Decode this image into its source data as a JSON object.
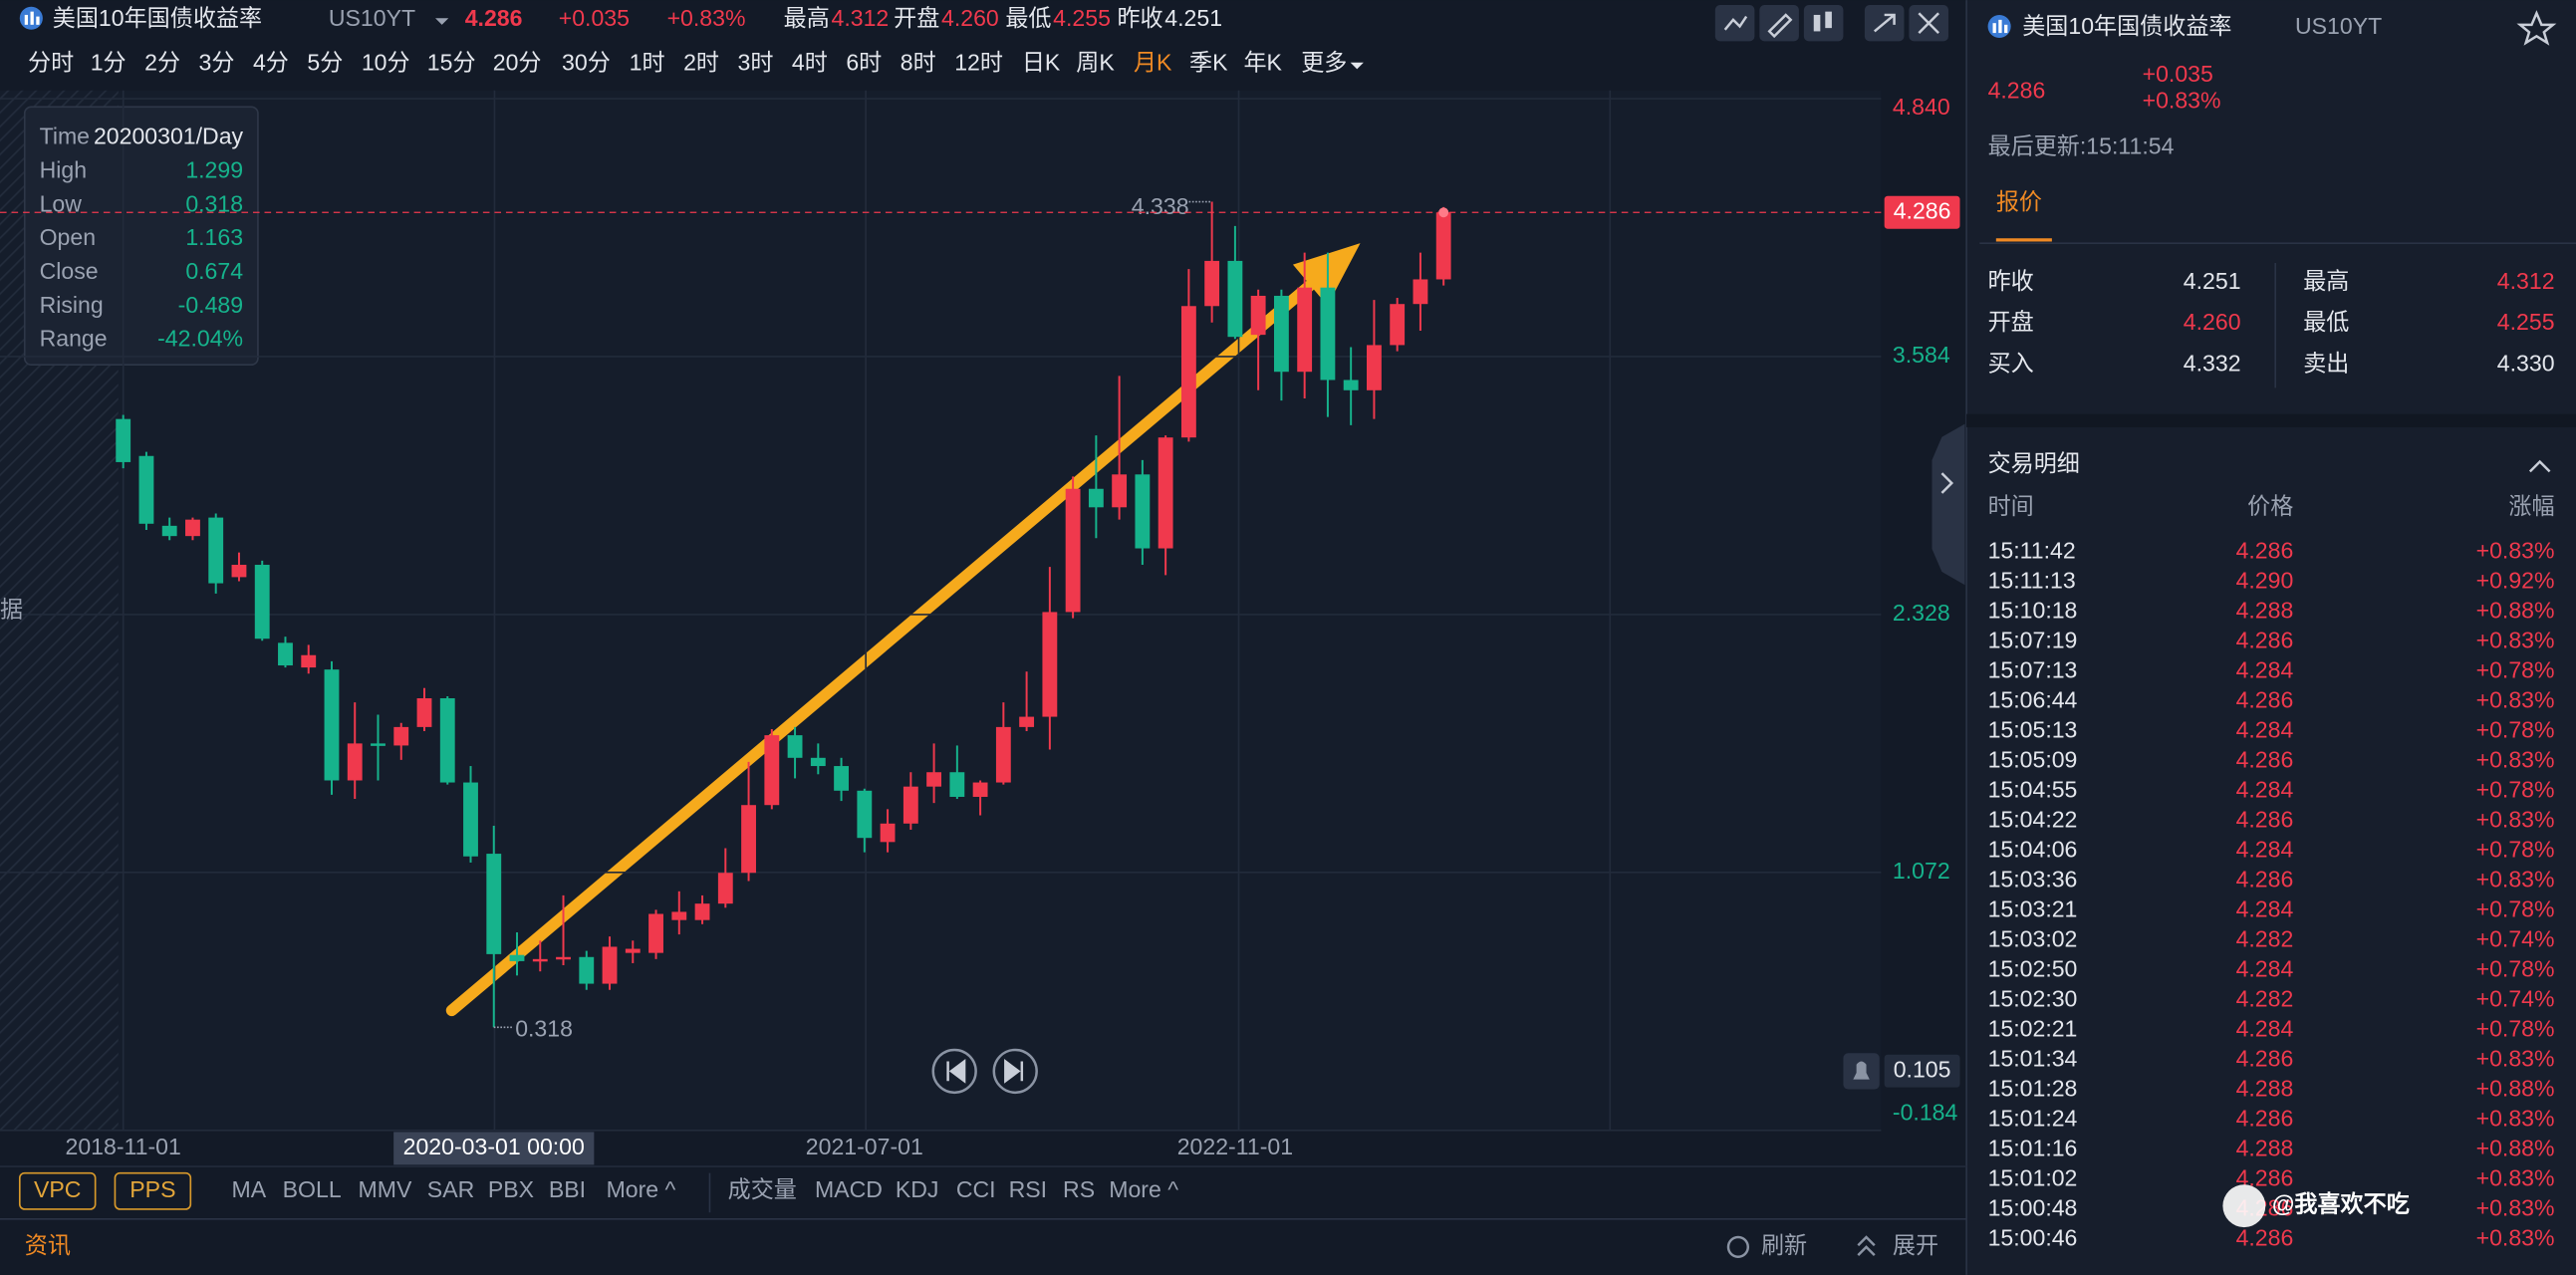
{
  "header": {
    "title": "美国10年国债收益率",
    "code": "US10YT",
    "price": "4.286",
    "change": "+0.035",
    "change_pct": "+0.83%",
    "stats": [
      {
        "label": "最高",
        "value": "4.312"
      },
      {
        "label": "开盘",
        "value": "4.260"
      },
      {
        "label": "最低",
        "value": "4.255"
      },
      {
        "label": "昨收",
        "value": "4.251"
      }
    ]
  },
  "timeframes": {
    "items": [
      "分时",
      "1分",
      "2分",
      "3分",
      "4分",
      "5分",
      "10分",
      "15分",
      "20分",
      "30分",
      "1时",
      "2时",
      "3时",
      "4时",
      "6时",
      "8时",
      "12时",
      "日K",
      "周K",
      "月K",
      "季K",
      "年K",
      "更多"
    ],
    "active": 19
  },
  "info_box": {
    "rows": [
      [
        "Time",
        "20200301/Day"
      ],
      [
        "High",
        "1.299"
      ],
      [
        "Low",
        "0.318"
      ],
      [
        "Open",
        "1.163"
      ],
      [
        "Close",
        "0.674"
      ],
      [
        "Rising",
        "-0.489"
      ],
      [
        "Range",
        "-42.04%"
      ]
    ]
  },
  "side_text": "据",
  "chart_data": {
    "type": "candlestick",
    "up_color": "#f0394d",
    "down_color": "#16b38c",
    "categories": [
      "2018-11-01",
      null,
      null,
      null,
      null,
      null,
      null,
      null,
      null,
      null,
      null,
      null,
      null,
      null,
      null,
      null,
      null,
      null,
      null,
      null,
      null,
      null,
      null,
      null,
      null,
      null,
      null,
      null,
      null,
      null,
      null,
      null,
      "2021-07-01",
      null,
      null,
      null,
      null,
      null,
      null,
      null,
      null,
      null,
      null,
      null,
      null,
      null,
      null,
      null,
      "2022-11-01",
      null,
      null,
      null,
      null,
      null,
      null,
      null,
      null,
      null
    ],
    "open": [
      3.28,
      3.1,
      2.76,
      2.71,
      2.8,
      2.51,
      2.57,
      2.19,
      2.07,
      2.06,
      1.52,
      1.7,
      1.69,
      1.78,
      1.92,
      1.51,
      1.163,
      0.67,
      0.64,
      0.65,
      0.66,
      0.53,
      0.68,
      0.68,
      0.84,
      0.84,
      0.92,
      1.07,
      1.4,
      1.74,
      1.63,
      1.59,
      1.47,
      1.22,
      1.31,
      1.49,
      1.56,
      1.44,
      1.51,
      1.78,
      1.83,
      2.34,
      2.94,
      2.85,
      3.01,
      2.65,
      3.19,
      3.83,
      4.05,
      3.69,
      3.88,
      3.51,
      3.92,
      3.47,
      3.42,
      3.64,
      3.84,
      3.96
    ],
    "high": [
      3.3,
      3.12,
      2.8,
      2.8,
      2.82,
      2.63,
      2.59,
      2.22,
      2.18,
      2.1,
      1.9,
      1.84,
      1.8,
      1.97,
      1.93,
      1.59,
      1.299,
      0.78,
      0.74,
      0.96,
      0.69,
      0.76,
      0.74,
      0.89,
      0.98,
      0.96,
      1.19,
      1.61,
      1.77,
      1.78,
      1.7,
      1.63,
      1.48,
      1.38,
      1.56,
      1.7,
      1.69,
      1.52,
      1.9,
      2.05,
      2.56,
      3.0,
      3.2,
      3.49,
      3.08,
      3.2,
      4.01,
      4.338,
      4.22,
      3.91,
      3.91,
      4.09,
      4.09,
      3.63,
      3.86,
      3.87,
      4.09,
      4.312
    ],
    "low": [
      3.04,
      2.74,
      2.69,
      2.69,
      2.43,
      2.49,
      2.2,
      2.07,
      2.04,
      1.45,
      1.43,
      1.52,
      1.62,
      1.76,
      1.5,
      1.12,
      0.318,
      0.57,
      0.59,
      0.62,
      0.5,
      0.5,
      0.63,
      0.65,
      0.77,
      0.82,
      0.9,
      1.03,
      1.38,
      1.53,
      1.55,
      1.42,
      1.17,
      1.17,
      1.28,
      1.41,
      1.43,
      1.35,
      1.5,
      1.76,
      1.67,
      2.31,
      2.7,
      2.79,
      2.57,
      2.52,
      3.17,
      3.75,
      3.67,
      3.42,
      3.37,
      3.38,
      3.29,
      3.25,
      3.28,
      3.61,
      3.71,
      3.93
    ],
    "close": [
      3.07,
      2.77,
      2.71,
      2.79,
      2.48,
      2.57,
      2.21,
      2.08,
      2.13,
      1.52,
      1.7,
      1.69,
      1.78,
      1.92,
      1.51,
      1.15,
      0.674,
      0.64,
      0.65,
      0.66,
      0.53,
      0.71,
      0.7,
      0.87,
      0.88,
      0.92,
      1.07,
      1.4,
      1.74,
      1.63,
      1.59,
      1.47,
      1.24,
      1.31,
      1.49,
      1.56,
      1.44,
      1.51,
      1.78,
      1.83,
      2.34,
      2.94,
      2.85,
      3.01,
      2.65,
      3.19,
      3.83,
      4.05,
      3.68,
      3.88,
      3.51,
      3.92,
      3.47,
      3.42,
      3.64,
      3.84,
      3.96,
      4.286
    ],
    "ylim": [
      -0.184,
      4.856
    ],
    "yticks": [
      {
        "value": -0.184,
        "label": "-0.184"
      },
      {
        "value": 1.072,
        "label": "1.072"
      },
      {
        "value": 2.328,
        "label": "2.328"
      },
      {
        "value": 3.584,
        "label": "3.584"
      },
      {
        "value": 4.84,
        "label": "4.840"
      }
    ],
    "grid": true,
    "max_label": 4.338,
    "min_label": 0.318,
    "last_price": 4.286,
    "cursor_value": 0.105,
    "cursor_date": "2020-03-01 00:00"
  },
  "indicators": {
    "main": [
      "VPC",
      "PPS"
    ],
    "overlay": [
      "MA",
      "BOLL",
      "MMV",
      "SAR",
      "PBX",
      "BBI",
      "More ^"
    ],
    "sub": [
      "成交量",
      "MACD",
      "KDJ",
      "CCI",
      "RSI",
      "RS",
      "More ^"
    ]
  },
  "bottom_bar": {
    "tab": "资讯",
    "refresh": "刷新",
    "expand": "展开"
  },
  "quote_panel": {
    "title": "美国10年国债收益率",
    "code": "US10YT",
    "price": "4.286",
    "change": "+0.035",
    "change_pct": "+0.83%",
    "updated": "最后更新:15:11:54",
    "tab": "报价",
    "rows": [
      [
        {
          "label": "昨收",
          "value": "4.251"
        },
        {
          "label": "最高",
          "value": "4.312"
        }
      ],
      [
        {
          "label": "开盘",
          "value": "4.260"
        },
        {
          "label": "最低",
          "value": "4.255"
        }
      ],
      [
        {
          "label": "买入",
          "value": "4.332"
        },
        {
          "label": "卖出",
          "value": "4.330"
        }
      ]
    ]
  },
  "trades": {
    "title": "交易明细",
    "columns": [
      "时间",
      "价格",
      "涨幅"
    ],
    "rows": [
      [
        "15:11:42",
        "4.286",
        "+0.83%"
      ],
      [
        "15:11:13",
        "4.290",
        "+0.92%"
      ],
      [
        "15:10:18",
        "4.288",
        "+0.88%"
      ],
      [
        "15:07:19",
        "4.286",
        "+0.83%"
      ],
      [
        "15:07:13",
        "4.284",
        "+0.78%"
      ],
      [
        "15:06:44",
        "4.286",
        "+0.83%"
      ],
      [
        "15:05:13",
        "4.284",
        "+0.78%"
      ],
      [
        "15:05:09",
        "4.286",
        "+0.83%"
      ],
      [
        "15:04:55",
        "4.284",
        "+0.78%"
      ],
      [
        "15:04:22",
        "4.286",
        "+0.83%"
      ],
      [
        "15:04:06",
        "4.284",
        "+0.78%"
      ],
      [
        "15:03:36",
        "4.286",
        "+0.83%"
      ],
      [
        "15:03:21",
        "4.284",
        "+0.78%"
      ],
      [
        "15:03:02",
        "4.282",
        "+0.74%"
      ],
      [
        "15:02:50",
        "4.284",
        "+0.78%"
      ],
      [
        "15:02:30",
        "4.282",
        "+0.74%"
      ],
      [
        "15:02:21",
        "4.284",
        "+0.78%"
      ],
      [
        "15:01:34",
        "4.286",
        "+0.83%"
      ],
      [
        "15:01:28",
        "4.288",
        "+0.88%"
      ],
      [
        "15:01:24",
        "4.286",
        "+0.83%"
      ],
      [
        "15:01:16",
        "4.288",
        "+0.88%"
      ],
      [
        "15:01:02",
        "4.286",
        "+0.83%"
      ],
      [
        "15:00:48",
        "4.286",
        "+0.83%"
      ],
      [
        "15:00:46",
        "4.286",
        "+0.83%"
      ]
    ]
  },
  "watermark": "@我喜欢不吃"
}
